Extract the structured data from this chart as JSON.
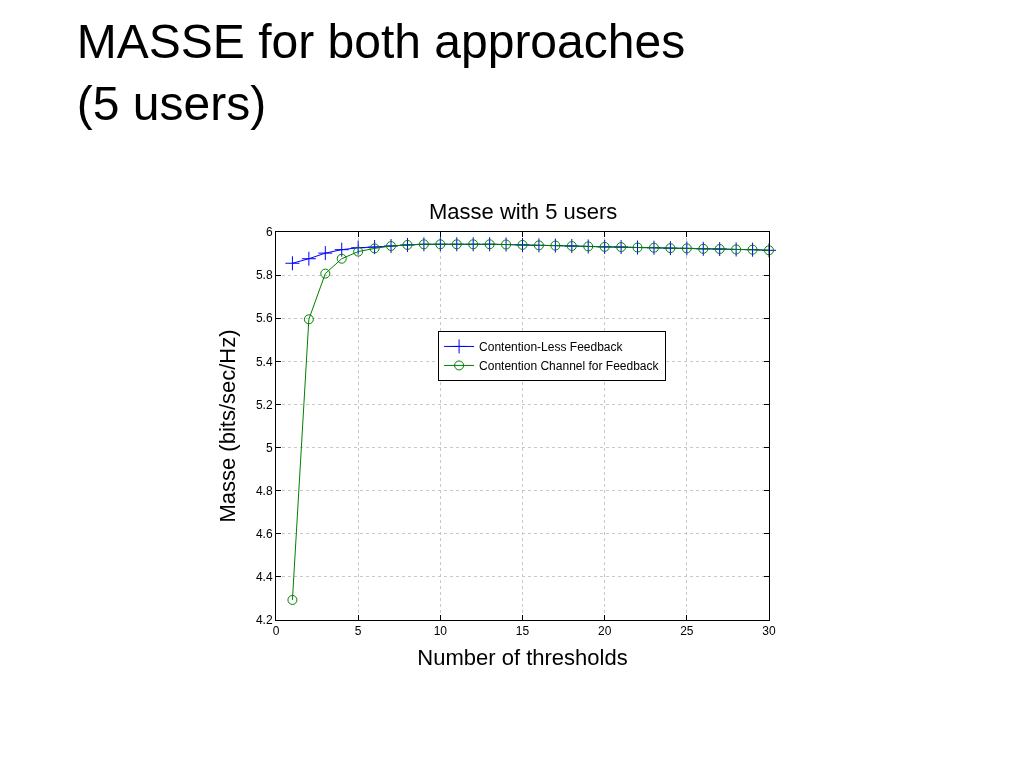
{
  "chart_data": {
    "type": "line",
    "title": "MASSE for both approaches\n(5 users)",
    "subtitle": "Masse with 5 users",
    "xlabel": "Number of thresholds",
    "ylabel": "Masse (bits/sec/Hz)",
    "x": [
      1,
      2,
      3,
      4,
      5,
      6,
      7,
      8,
      9,
      10,
      11,
      12,
      13,
      14,
      15,
      16,
      17,
      18,
      19,
      20,
      21,
      22,
      23,
      24,
      25,
      26,
      27,
      28,
      29,
      30
    ],
    "series": [
      {
        "name": "Contention-Less Feedback",
        "color": "#0000ff",
        "marker": "cross",
        "values": [
          5.855,
          5.876,
          5.902,
          5.918,
          5.927,
          5.93,
          5.935,
          5.94,
          5.943,
          5.943,
          5.943,
          5.943,
          5.943,
          5.942,
          5.94,
          5.938,
          5.937,
          5.935,
          5.933,
          5.931,
          5.93,
          5.928,
          5.927,
          5.925,
          5.924,
          5.922,
          5.921,
          5.919,
          5.918,
          5.915
        ]
      },
      {
        "name": "Contention Channel for Feedback",
        "color": "#008000",
        "marker": "circle",
        "values": [
          4.293,
          5.595,
          5.807,
          5.876,
          5.909,
          5.924,
          5.935,
          5.94,
          5.943,
          5.943,
          5.943,
          5.943,
          5.943,
          5.942,
          5.94,
          5.938,
          5.937,
          5.935,
          5.933,
          5.931,
          5.93,
          5.928,
          5.927,
          5.925,
          5.924,
          5.922,
          5.921,
          5.919,
          5.918,
          5.915
        ]
      }
    ],
    "xlim": [
      0,
      30
    ],
    "xticks": [
      0,
      5,
      10,
      15,
      20,
      25,
      30
    ],
    "ylim": [
      4.2,
      6
    ],
    "yticks": [
      4.2,
      4.4,
      4.6,
      4.8,
      5,
      5.2,
      5.4,
      5.6,
      5.8,
      6
    ],
    "grid": true,
    "legend": "top",
    "line_style": "solid"
  }
}
